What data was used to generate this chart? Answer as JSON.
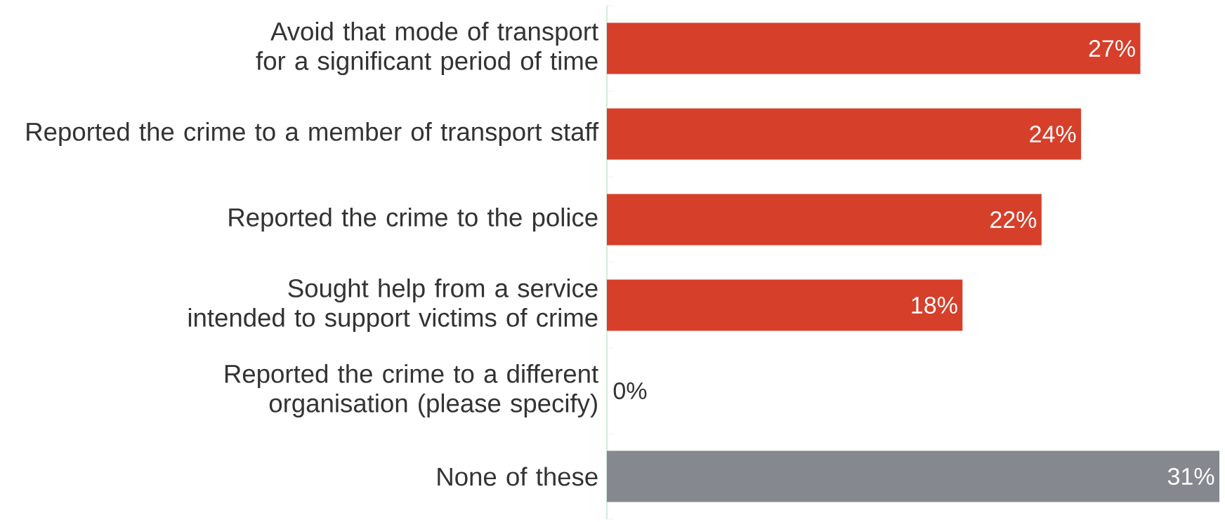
{
  "chart_data": {
    "type": "bar",
    "orientation": "horizontal",
    "categories": [
      "Avoid that mode of transport for a significant period of time",
      "Reported the crime to a member of transport staff",
      "Reported the crime to the police",
      "Sought help from a service intended to support victims of crime",
      "Reported the crime to a different organisation (please specify)",
      "None of these"
    ],
    "values": [
      27,
      24,
      22,
      18,
      0,
      31
    ],
    "colors": [
      "#d63f2a",
      "#d63f2a",
      "#d63f2a",
      "#d63f2a",
      "#d63f2a",
      "#85898f"
    ],
    "value_labels": [
      "27%",
      "24%",
      "22%",
      "18%",
      "0%",
      "31%"
    ]
  }
}
